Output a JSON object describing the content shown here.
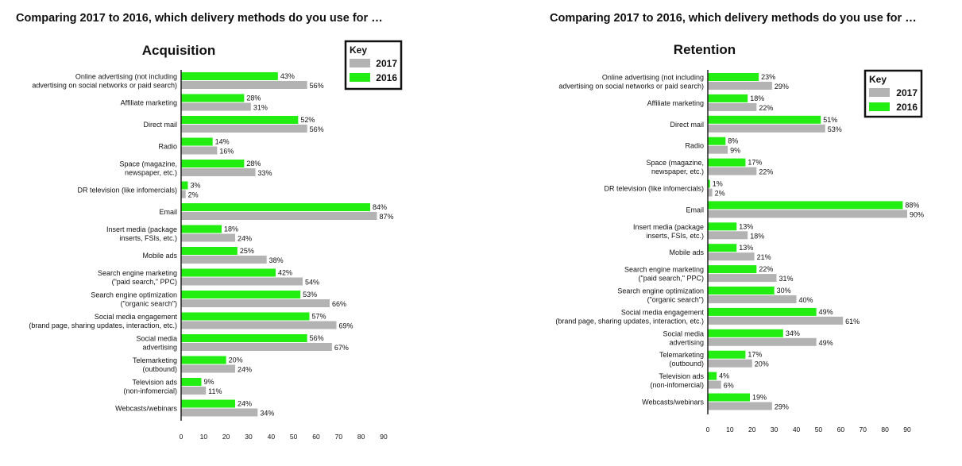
{
  "chart_data": [
    {
      "type": "bar",
      "title": "Comparing 2017 to 2016, which delivery methods do you use for …",
      "subtitle": "Acquisition",
      "xlabel": "",
      "ylabel": "",
      "xlim": [
        0,
        90
      ],
      "xticks": [
        0,
        10,
        20,
        30,
        40,
        50,
        60,
        70,
        80,
        90
      ],
      "grid": false,
      "legend": {
        "title": "Key",
        "placement": "top-right",
        "entries": [
          "2017",
          "2016"
        ]
      },
      "categories": [
        [
          "Online advertising (not including",
          "advertising on social networks or paid search)"
        ],
        [
          "Affiliate marketing"
        ],
        [
          "Direct mail"
        ],
        [
          "Radio"
        ],
        [
          "Space (magazine,",
          "newspaper, etc.)"
        ],
        [
          "DR television (like infomercials)"
        ],
        [
          "Email"
        ],
        [
          "Insert media (package",
          "inserts, FSIs, etc.)"
        ],
        [
          "Mobile ads"
        ],
        [
          "Search engine marketing",
          "(\"paid search,\" PPC)"
        ],
        [
          "Search engine optimization",
          "(\"organic search\")"
        ],
        [
          "Social media engagement",
          "(brand page, sharing updates, interaction, etc.)"
        ],
        [
          "Social media",
          "advertising"
        ],
        [
          "Telemarketing",
          "(outbound)"
        ],
        [
          "Television ads",
          "(non-infomercial)"
        ],
        [
          "Webcasts/webinars"
        ]
      ],
      "series": [
        {
          "name": "2016",
          "color": "#22ee11",
          "values": [
            43,
            28,
            52,
            14,
            28,
            3,
            84,
            18,
            25,
            42,
            53,
            57,
            56,
            20,
            9,
            24
          ]
        },
        {
          "name": "2017",
          "color": "#b3b3b3",
          "values": [
            56,
            31,
            56,
            16,
            33,
            2,
            87,
            24,
            38,
            54,
            66,
            69,
            67,
            24,
            11,
            34
          ]
        }
      ]
    },
    {
      "type": "bar",
      "title": "Comparing 2017 to 2016, which delivery methods do you use for …",
      "subtitle": "Retention",
      "xlabel": "",
      "ylabel": "",
      "xlim": [
        0,
        90
      ],
      "xticks": [
        0,
        10,
        20,
        30,
        40,
        50,
        60,
        70,
        80,
        90
      ],
      "grid": false,
      "legend": {
        "title": "Key",
        "placement": "top-right",
        "entries": [
          "2017",
          "2016"
        ]
      },
      "categories": [
        [
          "Online advertising (not including",
          "advertising on social networks or paid search)"
        ],
        [
          "Affiliate marketing"
        ],
        [
          "Direct mail"
        ],
        [
          "Radio"
        ],
        [
          "Space (magazine,",
          "newspaper, etc.)"
        ],
        [
          "DR television (like infomercials)"
        ],
        [
          "Email"
        ],
        [
          "Insert media (package",
          "inserts, FSIs, etc.)"
        ],
        [
          "Mobile ads"
        ],
        [
          "Search engine marketing",
          "(\"paid search,\" PPC)"
        ],
        [
          "Search engine optimization",
          "(\"organic search\")"
        ],
        [
          "Social media engagement",
          "(brand page, sharing updates, interaction, etc.)"
        ],
        [
          "Social media",
          "advertising"
        ],
        [
          "Telemarketing",
          "(outbound)"
        ],
        [
          "Television ads",
          "(non-infomercial)"
        ],
        [
          "Webcasts/webinars"
        ]
      ],
      "series": [
        {
          "name": "2016",
          "color": "#22ee11",
          "values": [
            23,
            18,
            51,
            8,
            17,
            1,
            88,
            13,
            13,
            22,
            30,
            49,
            34,
            17,
            4,
            19
          ]
        },
        {
          "name": "2017",
          "color": "#b3b3b3",
          "values": [
            29,
            22,
            53,
            9,
            22,
            2,
            90,
            18,
            21,
            31,
            40,
            61,
            49,
            20,
            6,
            29
          ]
        }
      ]
    }
  ]
}
